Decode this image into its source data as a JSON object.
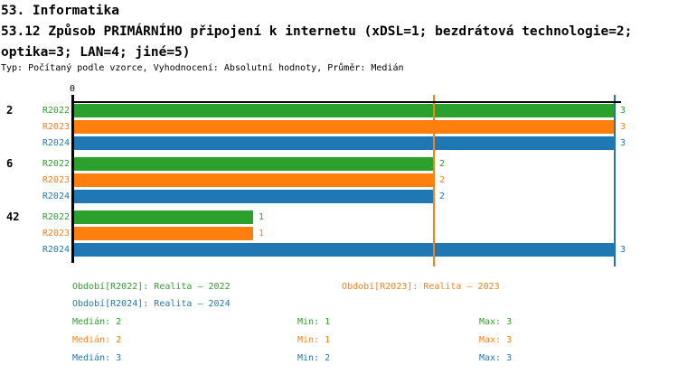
{
  "header": {
    "section_title": "53. Informatika",
    "question_title": "53.12 Způsob PRIMÁRNÍHO připojení k internetu (xDSL=1; bezdrátová technologie=2; optika=3; LAN=4; jiné=5)",
    "meta": "Typ: Počítaný podle vzorce, Vyhodnocení: Absolutní hodnoty, Průměr: Medián"
  },
  "chart_data": {
    "type": "bar",
    "orientation": "horizontal",
    "origin_tick_label": "0",
    "xlim": [
      0,
      3.27
    ],
    "grid": false,
    "legend_position": "bottom",
    "categories": [
      "2",
      "6",
      "42"
    ],
    "series": [
      {
        "name": "R2022",
        "color": "#2ca02c",
        "values": [
          3,
          2,
          1
        ],
        "legend_label": "Období[R2022]: Realita – 2022",
        "median": 2,
        "min": 1,
        "max": 3,
        "median_label": "Medián: 2",
        "min_label": "Min: 1",
        "max_label": "Max: 3"
      },
      {
        "name": "R2023",
        "color": "#ff7f0e",
        "values": [
          3,
          2,
          1
        ],
        "legend_label": "Období[R2023]: Realita – 2023",
        "median": 2,
        "min": 1,
        "max": 3,
        "median_label": "Medián: 2",
        "min_label": "Min: 1",
        "max_label": "Max: 3"
      },
      {
        "name": "R2024",
        "color": "#1f77b4",
        "values": [
          3,
          2,
          3
        ],
        "legend_label": "Období[R2024]: Realita – 2024",
        "median": 3,
        "min": 2,
        "max": 3,
        "median_label": "Medián: 3",
        "min_label": "Min: 2",
        "max_label": "Max: 3"
      }
    ],
    "reference_lines": [
      {
        "value": 2,
        "color": "#ff7f0e"
      },
      {
        "value": 3,
        "color": "#1f77b4"
      }
    ]
  }
}
